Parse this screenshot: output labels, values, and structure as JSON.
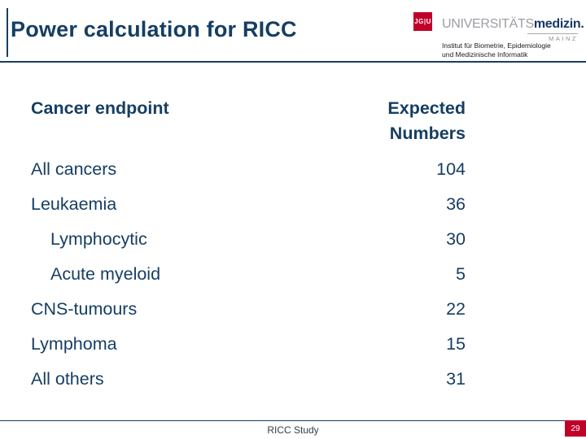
{
  "colors": {
    "navy": "#163e63",
    "red": "#c1002a",
    "gray": "#9b9ea3"
  },
  "header": {
    "title": "Power calculation for RICC"
  },
  "logo": {
    "initials": "JG|U",
    "wordmark_caps": "UNIVERSITÄTS",
    "wordmark_bold": "medizin.",
    "city": "MAINZ",
    "institute_line1": "Institut für Biometrie, Epidemiologie",
    "institute_line2": "und Medizinische Informatik"
  },
  "table": {
    "header": {
      "endpoint": "Cancer endpoint",
      "expected_line1": "Expected",
      "expected_line2": "Numbers"
    },
    "rows": [
      {
        "label": "All cancers",
        "value": "104",
        "indent": false
      },
      {
        "label": "Leukaemia",
        "value": "36",
        "indent": false
      },
      {
        "label": "Lymphocytic",
        "value": "30",
        "indent": true
      },
      {
        "label": "Acute myeloid",
        "value": "5",
        "indent": true
      },
      {
        "label": "CNS-tumours",
        "value": "22",
        "indent": false
      },
      {
        "label": "Lymphoma",
        "value": "15",
        "indent": false
      },
      {
        "label": "All others",
        "value": "31",
        "indent": false
      }
    ]
  },
  "footer": {
    "label": "RICC Study",
    "page_number": "29"
  }
}
